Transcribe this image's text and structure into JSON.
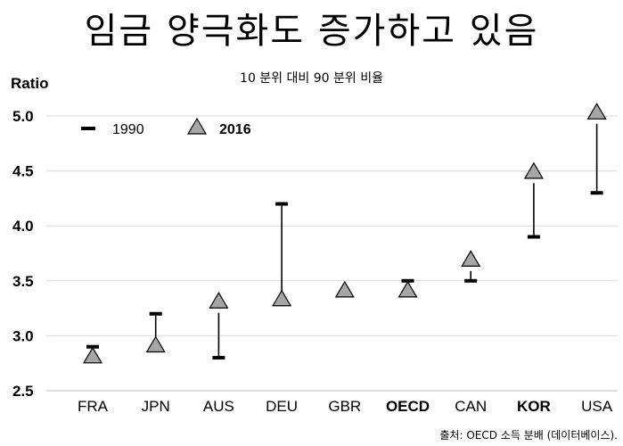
{
  "title": "임금 양극화도 증가하고 있음",
  "subtitle": "10 분위 대비 90 분위 비율",
  "source": "출처: OECD 소득 분배 (데이터베이스).",
  "colors": {
    "triangle_fill": "#a6a6a6",
    "line": "#000000",
    "grid": "#d9d9d9"
  },
  "chart_data": {
    "type": "scatter",
    "ylabel": "Ratio",
    "ylim": [
      2.5,
      5.0
    ],
    "yticks": [
      "2.5",
      "3.0",
      "3.5",
      "4.0",
      "4.5",
      "5.0"
    ],
    "grid": true,
    "legend_position": "top-left",
    "bold_categories": [
      "OECD",
      "KOR"
    ],
    "categories": [
      "FRA",
      "JPN",
      "AUS",
      "DEU",
      "GBR",
      "OECD",
      "CAN",
      "KOR",
      "USA"
    ],
    "series": [
      {
        "name": "1990",
        "marker": "dash",
        "values": [
          2.9,
          3.2,
          2.8,
          4.2,
          null,
          3.5,
          3.5,
          3.9,
          4.3
        ]
      },
      {
        "name": "2016",
        "marker": "triangle",
        "values": [
          2.8,
          2.9,
          3.3,
          3.32,
          3.4,
          3.4,
          3.68,
          4.48,
          5.02
        ]
      }
    ]
  }
}
